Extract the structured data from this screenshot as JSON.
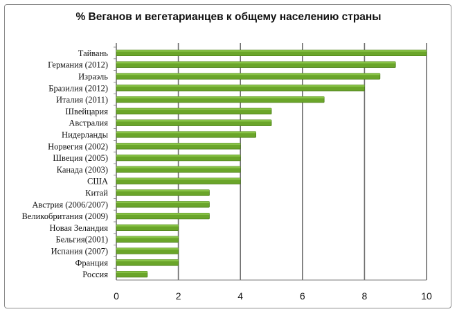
{
  "chart_data": {
    "type": "bar",
    "orientation": "horizontal",
    "title": "% Веганов и вегетарианцев к общему населению страны",
    "categories": [
      "Тайвань",
      "Германия (2012)",
      "Израэль",
      "Бразилия (2012)",
      "Италия (2011)",
      "Швейцария",
      "Австралия",
      "Нидерланды",
      "Норвегия (2002)",
      "Швеция (2005)",
      "Канада (2003)",
      "США",
      "Китай",
      "Австрия (2006/2007)",
      "Великобритания (2009)",
      "Новая Зеландия",
      "Бельгия(2001)",
      "Испания (2007)",
      "Франция",
      "Россия"
    ],
    "values": [
      10,
      9,
      8.5,
      8,
      6.7,
      5,
      5,
      4.5,
      4,
      4,
      4,
      4,
      3,
      3,
      3,
      2,
      2,
      2,
      2,
      1
    ],
    "xlim": [
      0,
      10
    ],
    "xticks": [
      0,
      2,
      4,
      6,
      8,
      10
    ],
    "grid": true,
    "bar_color": "#6aa52a",
    "bar_edge_color": "#4a7d16"
  }
}
